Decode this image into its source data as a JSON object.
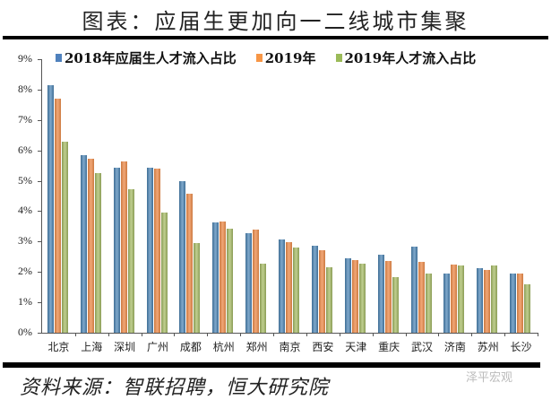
{
  "title": "图表：应届生更加向一二线城市集聚",
  "legend": [
    {
      "label": "2018年应届生人才流入占比",
      "color": "#4f81bd"
    },
    {
      "label": "2019年",
      "color": "#f79646"
    },
    {
      "label": "2019年人才流入占比",
      "color": "#9bbb59"
    }
  ],
  "y_ticks": [
    "0%",
    "1%",
    "2%",
    "3%",
    "4%",
    "5%",
    "6%",
    "7%",
    "8%",
    "9%"
  ],
  "source": "资料来源：智联招聘，恒大研究院",
  "watermark": "泽平宏观",
  "chart_data": {
    "type": "bar",
    "title": "图表：应届生更加向一二线城市集聚",
    "xlabel": "",
    "ylabel": "",
    "ylim": [
      0,
      9
    ],
    "y_unit": "%",
    "grid": false,
    "legend_position": "top",
    "categories": [
      "北京",
      "上海",
      "深圳",
      "广州",
      "成都",
      "杭州",
      "郑州",
      "南京",
      "西安",
      "天津",
      "重庆",
      "武汉",
      "济南",
      "苏州",
      "长沙"
    ],
    "series": [
      {
        "name": "2018年应届生人才流入占比",
        "color": "#4f81bd",
        "values": [
          8.15,
          5.84,
          5.43,
          5.43,
          5.0,
          3.63,
          3.27,
          3.07,
          2.86,
          2.45,
          2.57,
          2.83,
          1.95,
          2.12,
          1.95
        ]
      },
      {
        "name": "2019年",
        "color": "#f79646",
        "values": [
          7.7,
          5.72,
          5.63,
          5.4,
          4.57,
          3.66,
          3.39,
          2.98,
          2.71,
          2.39,
          2.36,
          2.33,
          2.24,
          2.06,
          1.95
        ]
      },
      {
        "name": "2019年人才流入占比",
        "color": "#9bbb59",
        "values": [
          6.28,
          5.25,
          4.72,
          3.95,
          2.95,
          3.42,
          2.27,
          2.8,
          2.15,
          2.27,
          1.83,
          1.95,
          2.21,
          2.21,
          1.59
        ]
      }
    ]
  }
}
